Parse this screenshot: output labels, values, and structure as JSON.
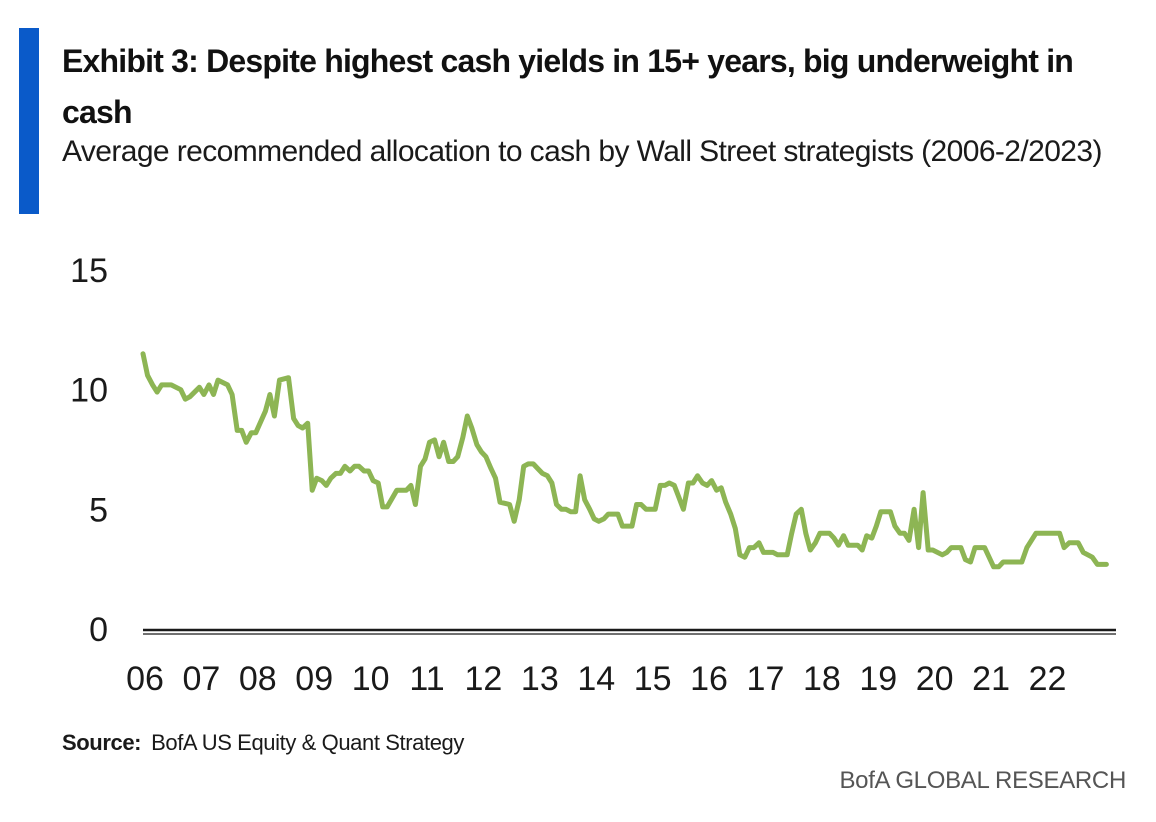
{
  "header": {
    "title": "Exhibit 3: Despite highest cash yields in 15+ years, big underweight in cash",
    "subtitle": "Average recommended allocation to cash by Wall Street strategists (2006-2/2023)"
  },
  "footer": {
    "source_label": "Source:",
    "source_text": "BofA US Equity & Quant Strategy",
    "brand": "BofA GLOBAL RESEARCH"
  },
  "colors": {
    "accent": "#0a5ac9",
    "series": "#8db554",
    "axis": "#1a1a1a"
  },
  "chart_data": {
    "type": "line",
    "title": "",
    "xlabel": "",
    "ylabel": "",
    "ylim": [
      0,
      15
    ],
    "yticks": [
      0,
      5,
      10,
      15
    ],
    "xlim": [
      2006,
      2023.25
    ],
    "x_tick_labels": [
      "06",
      "07",
      "08",
      "09",
      "10",
      "11",
      "12",
      "13",
      "14",
      "15",
      "16",
      "17",
      "18",
      "19",
      "20",
      "21",
      "22"
    ],
    "grid": false,
    "legend": "none",
    "series": [
      {
        "name": "",
        "points": [
          [
            2006.0,
            11.5
          ],
          [
            2006.08,
            10.6
          ],
          [
            2006.17,
            10.2
          ],
          [
            2006.25,
            9.9
          ],
          [
            2006.33,
            10.2
          ],
          [
            2006.5,
            10.2
          ],
          [
            2006.67,
            10.0
          ],
          [
            2006.75,
            9.6
          ],
          [
            2006.83,
            9.7
          ],
          [
            2007.0,
            10.1
          ],
          [
            2007.08,
            9.8
          ],
          [
            2007.17,
            10.2
          ],
          [
            2007.25,
            9.8
          ],
          [
            2007.33,
            10.4
          ],
          [
            2007.5,
            10.2
          ],
          [
            2007.58,
            9.8
          ],
          [
            2007.67,
            8.3
          ],
          [
            2007.75,
            8.3
          ],
          [
            2007.83,
            7.8
          ],
          [
            2007.92,
            8.2
          ],
          [
            2008.0,
            8.2
          ],
          [
            2008.17,
            9.1
          ],
          [
            2008.25,
            9.8
          ],
          [
            2008.33,
            8.9
          ],
          [
            2008.42,
            10.4
          ],
          [
            2008.58,
            10.5
          ],
          [
            2008.67,
            8.8
          ],
          [
            2008.75,
            8.5
          ],
          [
            2008.83,
            8.4
          ],
          [
            2008.92,
            8.6
          ],
          [
            2009.0,
            5.8
          ],
          [
            2009.08,
            6.3
          ],
          [
            2009.17,
            6.2
          ],
          [
            2009.25,
            6.0
          ],
          [
            2009.33,
            6.3
          ],
          [
            2009.42,
            6.5
          ],
          [
            2009.5,
            6.5
          ],
          [
            2009.58,
            6.8
          ],
          [
            2009.67,
            6.6
          ],
          [
            2009.75,
            6.8
          ],
          [
            2009.83,
            6.8
          ],
          [
            2009.92,
            6.6
          ],
          [
            2010.0,
            6.6
          ],
          [
            2010.08,
            6.2
          ],
          [
            2010.17,
            6.1
          ],
          [
            2010.25,
            5.1
          ],
          [
            2010.33,
            5.1
          ],
          [
            2010.5,
            5.8
          ],
          [
            2010.67,
            5.8
          ],
          [
            2010.75,
            6.0
          ],
          [
            2010.83,
            5.2
          ],
          [
            2010.92,
            6.8
          ],
          [
            2011.0,
            7.1
          ],
          [
            2011.08,
            7.8
          ],
          [
            2011.17,
            7.9
          ],
          [
            2011.25,
            7.2
          ],
          [
            2011.33,
            7.8
          ],
          [
            2011.42,
            7.0
          ],
          [
            2011.5,
            7.0
          ],
          [
            2011.58,
            7.2
          ],
          [
            2011.67,
            8.0
          ],
          [
            2011.75,
            8.9
          ],
          [
            2011.83,
            8.4
          ],
          [
            2011.92,
            7.7
          ],
          [
            2012.0,
            7.4
          ],
          [
            2012.08,
            7.2
          ],
          [
            2012.17,
            6.7
          ],
          [
            2012.25,
            6.3
          ],
          [
            2012.33,
            5.3
          ],
          [
            2012.5,
            5.2
          ],
          [
            2012.58,
            4.5
          ],
          [
            2012.67,
            5.4
          ],
          [
            2012.75,
            6.8
          ],
          [
            2012.83,
            6.9
          ],
          [
            2012.92,
            6.9
          ],
          [
            2013.0,
            6.7
          ],
          [
            2013.08,
            6.5
          ],
          [
            2013.17,
            6.4
          ],
          [
            2013.25,
            6.1
          ],
          [
            2013.33,
            5.2
          ],
          [
            2013.42,
            5.0
          ],
          [
            2013.5,
            5.0
          ],
          [
            2013.58,
            4.9
          ],
          [
            2013.67,
            4.9
          ],
          [
            2013.75,
            6.4
          ],
          [
            2013.83,
            5.4
          ],
          [
            2013.92,
            5.0
          ],
          [
            2014.0,
            4.6
          ],
          [
            2014.08,
            4.5
          ],
          [
            2014.17,
            4.6
          ],
          [
            2014.25,
            4.8
          ],
          [
            2014.42,
            4.8
          ],
          [
            2014.5,
            4.3
          ],
          [
            2014.67,
            4.3
          ],
          [
            2014.75,
            5.2
          ],
          [
            2014.83,
            5.2
          ],
          [
            2014.92,
            5.0
          ],
          [
            2015.0,
            5.0
          ],
          [
            2015.08,
            5.0
          ],
          [
            2015.17,
            6.0
          ],
          [
            2015.25,
            6.0
          ],
          [
            2015.33,
            6.1
          ],
          [
            2015.42,
            6.0
          ],
          [
            2015.5,
            5.5
          ],
          [
            2015.58,
            5.0
          ],
          [
            2015.67,
            6.1
          ],
          [
            2015.75,
            6.1
          ],
          [
            2015.83,
            6.4
          ],
          [
            2015.92,
            6.1
          ],
          [
            2016.0,
            6.0
          ],
          [
            2016.08,
            6.2
          ],
          [
            2016.17,
            5.8
          ],
          [
            2016.25,
            5.9
          ],
          [
            2016.33,
            5.3
          ],
          [
            2016.42,
            4.8
          ],
          [
            2016.5,
            4.2
          ],
          [
            2016.58,
            3.1
          ],
          [
            2016.67,
            3.0
          ],
          [
            2016.75,
            3.4
          ],
          [
            2016.83,
            3.4
          ],
          [
            2016.92,
            3.6
          ],
          [
            2017.0,
            3.2
          ],
          [
            2017.17,
            3.2
          ],
          [
            2017.25,
            3.1
          ],
          [
            2017.42,
            3.1
          ],
          [
            2017.5,
            4.0
          ],
          [
            2017.58,
            4.8
          ],
          [
            2017.67,
            5.0
          ],
          [
            2017.75,
            4.0
          ],
          [
            2017.83,
            3.3
          ],
          [
            2017.92,
            3.6
          ],
          [
            2018.0,
            4.0
          ],
          [
            2018.17,
            4.0
          ],
          [
            2018.25,
            3.8
          ],
          [
            2018.33,
            3.5
          ],
          [
            2018.42,
            3.9
          ],
          [
            2018.5,
            3.5
          ],
          [
            2018.67,
            3.5
          ],
          [
            2018.75,
            3.3
          ],
          [
            2018.83,
            3.9
          ],
          [
            2018.92,
            3.8
          ],
          [
            2019.0,
            4.3
          ],
          [
            2019.08,
            4.9
          ],
          [
            2019.25,
            4.9
          ],
          [
            2019.33,
            4.3
          ],
          [
            2019.42,
            4.0
          ],
          [
            2019.5,
            4.0
          ],
          [
            2019.58,
            3.7
          ],
          [
            2019.67,
            5.0
          ],
          [
            2019.75,
            3.4
          ],
          [
            2019.83,
            5.7
          ],
          [
            2019.92,
            3.3
          ],
          [
            2020.0,
            3.3
          ],
          [
            2020.17,
            3.1
          ],
          [
            2020.25,
            3.2
          ],
          [
            2020.33,
            3.4
          ],
          [
            2020.5,
            3.4
          ],
          [
            2020.58,
            2.9
          ],
          [
            2020.67,
            2.8
          ],
          [
            2020.75,
            3.4
          ],
          [
            2020.92,
            3.4
          ],
          [
            2021.0,
            3.0
          ],
          [
            2021.08,
            2.6
          ],
          [
            2021.17,
            2.6
          ],
          [
            2021.25,
            2.8
          ],
          [
            2021.33,
            2.8
          ],
          [
            2021.58,
            2.8
          ],
          [
            2021.67,
            3.4
          ],
          [
            2021.83,
            4.0
          ],
          [
            2022.0,
            4.0
          ],
          [
            2022.25,
            4.0
          ],
          [
            2022.33,
            3.4
          ],
          [
            2022.42,
            3.6
          ],
          [
            2022.58,
            3.6
          ],
          [
            2022.67,
            3.2
          ],
          [
            2022.83,
            3.0
          ],
          [
            2022.92,
            2.7
          ],
          [
            2023.08,
            2.7
          ]
        ]
      }
    ]
  }
}
